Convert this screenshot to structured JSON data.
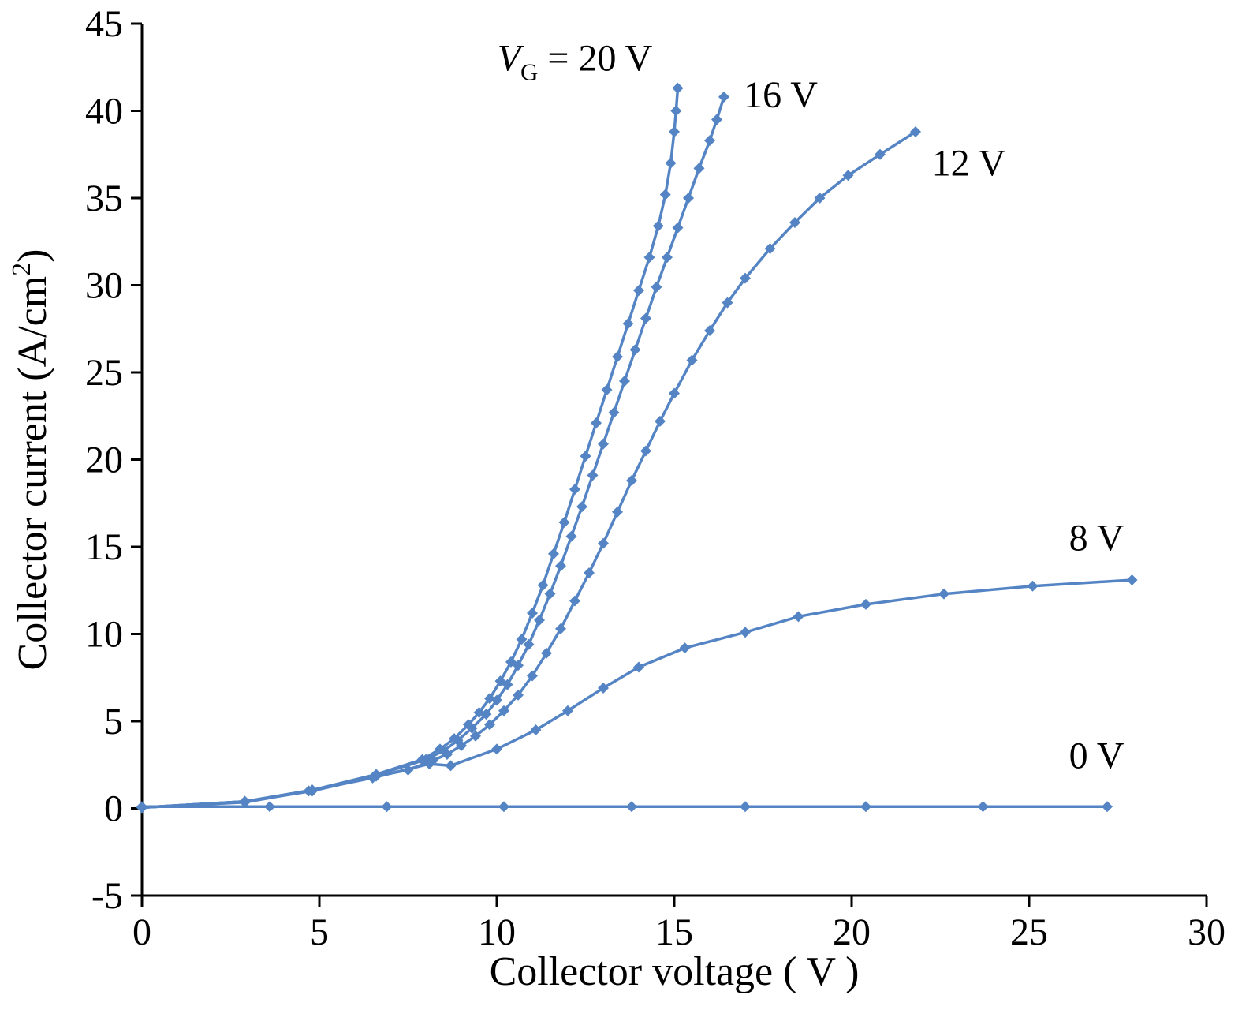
{
  "chart_data": {
    "type": "line",
    "title": "",
    "xlabel": "Collector voltage ( V )",
    "ylabel": {
      "pre": "Collector current (A/cm",
      "sup": "2",
      "post": ")"
    },
    "xlim": [
      0,
      30
    ],
    "ylim": [
      -5,
      45
    ],
    "xticks": [
      0,
      5,
      10,
      15,
      20,
      25,
      30
    ],
    "yticks": [
      -5,
      0,
      5,
      10,
      15,
      20,
      25,
      30,
      35,
      40,
      45
    ],
    "grid": false,
    "legend_position": "none",
    "line_color": "#5484c4",
    "axis_color": "#000000",
    "marker": "diamond",
    "series": [
      {
        "name": "VG = 0 V",
        "points": [
          [
            0,
            0.1
          ],
          [
            3.6,
            0.1
          ],
          [
            6.9,
            0.1
          ],
          [
            10.2,
            0.1
          ],
          [
            13.8,
            0.1
          ],
          [
            17.0,
            0.1
          ],
          [
            20.4,
            0.1
          ],
          [
            23.7,
            0.1
          ],
          [
            27.2,
            0.1
          ]
        ]
      },
      {
        "name": "VG = 8 V",
        "points": [
          [
            0,
            0.05
          ],
          [
            2.9,
            0.35
          ],
          [
            4.7,
            1.0
          ],
          [
            6.5,
            1.75
          ],
          [
            8.1,
            2.55
          ],
          [
            8.7,
            2.45
          ],
          [
            10.0,
            3.4
          ],
          [
            11.1,
            4.5
          ],
          [
            12.0,
            5.6
          ],
          [
            13.0,
            6.9
          ],
          [
            14.0,
            8.1
          ],
          [
            15.3,
            9.2
          ],
          [
            17.0,
            10.1
          ],
          [
            18.5,
            11.0
          ],
          [
            20.4,
            11.7
          ],
          [
            22.6,
            12.3
          ],
          [
            25.1,
            12.75
          ],
          [
            27.9,
            13.1
          ]
        ]
      },
      {
        "name": "VG = 12 V",
        "points": [
          [
            0,
            0.05
          ],
          [
            2.9,
            0.4
          ],
          [
            4.8,
            1.0
          ],
          [
            6.6,
            1.85
          ],
          [
            7.5,
            2.2
          ],
          [
            8.2,
            2.75
          ],
          [
            8.6,
            3.1
          ],
          [
            9.0,
            3.6
          ],
          [
            9.4,
            4.15
          ],
          [
            9.8,
            4.8
          ],
          [
            10.2,
            5.6
          ],
          [
            10.6,
            6.5
          ],
          [
            11.0,
            7.6
          ],
          [
            11.4,
            8.9
          ],
          [
            11.8,
            10.3
          ],
          [
            12.2,
            11.9
          ],
          [
            12.6,
            13.5
          ],
          [
            13.0,
            15.2
          ],
          [
            13.4,
            17.0
          ],
          [
            13.8,
            18.8
          ],
          [
            14.2,
            20.5
          ],
          [
            14.6,
            22.2
          ],
          [
            15.0,
            23.8
          ],
          [
            15.5,
            25.7
          ],
          [
            16.0,
            27.4
          ],
          [
            16.5,
            29.0
          ],
          [
            17.0,
            30.4
          ],
          [
            17.7,
            32.1
          ],
          [
            18.4,
            33.6
          ],
          [
            19.1,
            35.0
          ],
          [
            19.9,
            36.3
          ],
          [
            20.8,
            37.5
          ],
          [
            21.8,
            38.8
          ]
        ]
      },
      {
        "name": "VG = 16 V",
        "points": [
          [
            0,
            0.05
          ],
          [
            2.9,
            0.4
          ],
          [
            4.8,
            1.05
          ],
          [
            6.6,
            1.9
          ],
          [
            8.0,
            2.8
          ],
          [
            8.5,
            3.3
          ],
          [
            8.9,
            3.9
          ],
          [
            9.3,
            4.6
          ],
          [
            9.7,
            5.4
          ],
          [
            10.0,
            6.2
          ],
          [
            10.3,
            7.1
          ],
          [
            10.6,
            8.2
          ],
          [
            10.9,
            9.4
          ],
          [
            11.2,
            10.8
          ],
          [
            11.5,
            12.3
          ],
          [
            11.8,
            13.9
          ],
          [
            12.1,
            15.6
          ],
          [
            12.4,
            17.3
          ],
          [
            12.7,
            19.1
          ],
          [
            13.0,
            20.9
          ],
          [
            13.3,
            22.7
          ],
          [
            13.6,
            24.5
          ],
          [
            13.9,
            26.3
          ],
          [
            14.2,
            28.1
          ],
          [
            14.5,
            29.9
          ],
          [
            14.8,
            31.6
          ],
          [
            15.1,
            33.3
          ],
          [
            15.4,
            35.0
          ],
          [
            15.7,
            36.7
          ],
          [
            16.0,
            38.3
          ],
          [
            16.2,
            39.5
          ],
          [
            16.4,
            40.8
          ]
        ]
      },
      {
        "name": "VG = 20 V",
        "points": [
          [
            0,
            0.05
          ],
          [
            2.9,
            0.4
          ],
          [
            4.8,
            1.05
          ],
          [
            6.6,
            1.95
          ],
          [
            7.9,
            2.8
          ],
          [
            8.4,
            3.4
          ],
          [
            8.8,
            4.0
          ],
          [
            9.2,
            4.8
          ],
          [
            9.5,
            5.5
          ],
          [
            9.8,
            6.3
          ],
          [
            10.1,
            7.3
          ],
          [
            10.4,
            8.4
          ],
          [
            10.7,
            9.7
          ],
          [
            11.0,
            11.2
          ],
          [
            11.3,
            12.8
          ],
          [
            11.6,
            14.6
          ],
          [
            11.9,
            16.4
          ],
          [
            12.2,
            18.3
          ],
          [
            12.5,
            20.2
          ],
          [
            12.8,
            22.1
          ],
          [
            13.1,
            24.0
          ],
          [
            13.4,
            25.9
          ],
          [
            13.7,
            27.8
          ],
          [
            14.0,
            29.7
          ],
          [
            14.3,
            31.6
          ],
          [
            14.55,
            33.4
          ],
          [
            14.75,
            35.2
          ],
          [
            14.9,
            37.0
          ],
          [
            15.0,
            38.8
          ],
          [
            15.05,
            40.0
          ],
          [
            15.1,
            41.3
          ]
        ]
      }
    ],
    "annotations": [
      {
        "id": "label-vg-20v",
        "segments": [
          {
            "text": "V",
            "italic": true
          },
          {
            "text": "G",
            "sub": true
          },
          {
            "text": " = 20 V"
          }
        ],
        "x": 12.2,
        "y": 42.3,
        "anchor": "middle"
      },
      {
        "id": "label-16v",
        "segments": [
          {
            "text": "16 V"
          }
        ],
        "x": 18.0,
        "y": 40.2,
        "anchor": "middle"
      },
      {
        "id": "label-12v",
        "segments": [
          {
            "text": "12 V"
          }
        ],
        "x": 23.3,
        "y": 36.3,
        "anchor": "middle"
      },
      {
        "id": "label-8v",
        "segments": [
          {
            "text": "8 V"
          }
        ],
        "x": 26.9,
        "y": 14.8,
        "anchor": "middle"
      },
      {
        "id": "label-0v",
        "segments": [
          {
            "text": "0 V"
          }
        ],
        "x": 26.9,
        "y": 2.3,
        "anchor": "middle"
      }
    ]
  }
}
